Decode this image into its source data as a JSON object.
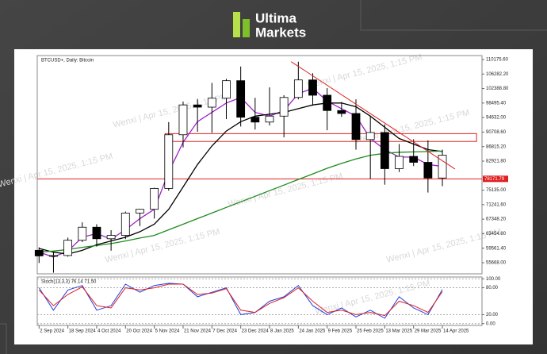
{
  "header": {
    "brand_top": "Ultima",
    "brand_bottom": "Markets"
  },
  "watermark": "Wenxi | Apr 15, 2025, 1:15 PM",
  "chart_data": [
    {
      "type": "candlestick",
      "title": "BTCUSD+, Daily: Bitcoin",
      "x": [
        "2024-09-02",
        "2024-09-10",
        "2024-09-18",
        "2024-09-26",
        "2024-10-04",
        "2024-10-12",
        "2024-10-20",
        "2024-10-28",
        "2024-11-05",
        "2024-11-13",
        "2024-11-21",
        "2024-11-29",
        "2024-12-07",
        "2024-12-15",
        "2024-12-23",
        "2024-12-31",
        "2025-01-08",
        "2025-01-16",
        "2025-01-24",
        "2025-02-01",
        "2025-02-09",
        "2025-02-17",
        "2025-02-25",
        "2025-03-05",
        "2025-03-13",
        "2025-03-21",
        "2025-03-29",
        "2025-04-06",
        "2025-04-14"
      ],
      "open": [
        59000,
        57500,
        57600,
        61700,
        65200,
        62100,
        63000,
        69000,
        70000,
        75600,
        90000,
        98000,
        97400,
        99800,
        104500,
        94700,
        93400,
        95000,
        100000,
        104700,
        100600,
        96500,
        95700,
        88700,
        90600,
        80900,
        84200,
        82600,
        78400
      ],
      "high": [
        59800,
        58500,
        62400,
        66500,
        66000,
        64400,
        69400,
        70100,
        75800,
        93400,
        98900,
        99600,
        103900,
        105000,
        108300,
        99900,
        102700,
        100600,
        109600,
        106500,
        102500,
        98800,
        99500,
        95000,
        92800,
        87500,
        88800,
        88500,
        86000
      ],
      "low": [
        55600,
        53000,
        57300,
        61200,
        60000,
        58900,
        62000,
        65500,
        67500,
        75000,
        86600,
        90800,
        90500,
        94200,
        92200,
        91400,
        92500,
        89300,
        99500,
        97800,
        91200,
        94800,
        86000,
        78200,
        76600,
        80000,
        81600,
        74500,
        76200
      ],
      "close": [
        57500,
        57600,
        61700,
        65200,
        62100,
        63000,
        69000,
        70000,
        75600,
        90000,
        98000,
        97400,
        99800,
        104500,
        94700,
        93400,
        95000,
        100000,
        104700,
        100600,
        96500,
        95700,
        88700,
        90600,
        80900,
        84200,
        82600,
        78400,
        84500
      ],
      "up_color": "#ffffff",
      "down_color": "#000000",
      "overlays": [
        {
          "color": "#a020c8",
          "values": [
            58500,
            57200,
            58800,
            62500,
            63500,
            62000,
            64500,
            67500,
            70000,
            80000,
            88000,
            93500,
            96000,
            98500,
            100000,
            96000,
            95000,
            96500,
            101000,
            102500,
            99000,
            97000,
            95000,
            89000,
            86000,
            84000,
            84000,
            82000,
            81500
          ]
        },
        {
          "color": "#000000",
          "values": [
            59500,
            58500,
            58000,
            59000,
            60500,
            61500,
            62500,
            64000,
            66000,
            70000,
            76000,
            82000,
            87000,
            91000,
            93500,
            95000,
            95500,
            96000,
            97000,
            98000,
            98500,
            98500,
            97500,
            95000,
            92000,
            89000,
            87500,
            86000,
            85500
          ]
        },
        {
          "color": "#1f8a1f",
          "values": [
            58500,
            58800,
            59200,
            59800,
            60300,
            60800,
            61500,
            62300,
            63000,
            64500,
            66000,
            67500,
            69000,
            70500,
            72000,
            73500,
            75000,
            76500,
            78000,
            79500,
            81000,
            82300,
            83500,
            84500,
            85000,
            85300,
            85400,
            85500,
            85600
          ]
        }
      ],
      "support": 78171.79,
      "support_color": "#e02020",
      "zone": {
        "x": [
          "2024-11-11",
          "2025-05-03"
        ],
        "y": [
          88200,
          90300
        ],
        "color": "#e02020"
      },
      "trendline": {
        "x": [
          "2025-01-20",
          "2025-04-21"
        ],
        "y": [
          109600,
          80800
        ],
        "color": "#e02020"
      },
      "xlim": [
        "2024-09-01",
        "2025-05-06"
      ],
      "ylim": [
        52690,
        111240
      ],
      "yticks": [
        {
          "value": 110175.6,
          "label": "110175.60"
        },
        {
          "value": 106282.2,
          "label": "106282.20"
        },
        {
          "value": 102388.8,
          "label": "102388.80"
        },
        {
          "value": 98495.4,
          "label": "98495.40"
        },
        {
          "value": 94632,
          "label": "94632.00"
        },
        {
          "value": 90708.6,
          "label": "90708.60"
        },
        {
          "value": 86815.2,
          "label": "86815.20"
        },
        {
          "value": 82921.8,
          "label": "82921.80"
        },
        {
          "value": 75135,
          "label": "75135.00"
        },
        {
          "value": 71241.6,
          "label": "71241.60"
        },
        {
          "value": 67348.2,
          "label": "67348.20"
        },
        {
          "value": 63454.8,
          "label": "63454.80"
        },
        {
          "value": 59561.4,
          "label": "59561.40"
        },
        {
          "value": 55668,
          "label": "55668.00"
        }
      ]
    },
    {
      "type": "line",
      "title": "Stoch(13,3,3) 76.14 71.50",
      "x": [
        "2024-09-02",
        "2024-09-10",
        "2024-09-18",
        "2024-09-26",
        "2024-10-04",
        "2024-10-12",
        "2024-10-20",
        "2024-10-28",
        "2024-11-05",
        "2024-11-13",
        "2024-11-21",
        "2024-11-29",
        "2024-12-07",
        "2024-12-15",
        "2024-12-23",
        "2024-12-31",
        "2025-01-08",
        "2025-01-16",
        "2025-01-24",
        "2025-02-01",
        "2025-02-09",
        "2025-02-17",
        "2025-02-25",
        "2025-03-05",
        "2025-03-13",
        "2025-03-21",
        "2025-03-29",
        "2025-04-06",
        "2025-04-14"
      ],
      "series": [
        {
          "color": "#2040e0",
          "values": [
            80,
            30,
            75,
            85,
            30,
            40,
            88,
            70,
            85,
            90,
            88,
            60,
            70,
            80,
            20,
            25,
            50,
            60,
            85,
            40,
            20,
            35,
            15,
            30,
            12,
            60,
            35,
            20,
            76.14
          ]
        },
        {
          "color": "#e02020",
          "values": [
            75,
            40,
            65,
            82,
            40,
            35,
            80,
            75,
            80,
            88,
            88,
            65,
            68,
            78,
            30,
            25,
            45,
            58,
            80,
            50,
            25,
            30,
            20,
            25,
            18,
            50,
            40,
            25,
            71.5
          ]
        }
      ],
      "xlim": [
        "2024-09-01",
        "2025-05-06"
      ],
      "ylim": [
        -4,
        104
      ],
      "grid": true,
      "yticks": [
        {
          "value": 100,
          "label": "100.00"
        },
        {
          "value": 80,
          "label": "80.00"
        },
        {
          "value": 20,
          "label": "20.00"
        },
        {
          "value": 0,
          "label": "0.00"
        }
      ],
      "xticks": [
        {
          "value": "2024-09-02",
          "label": "2 Sep 2024"
        },
        {
          "value": "2024-09-18",
          "label": "18 Sep 2024"
        },
        {
          "value": "2024-10-04",
          "label": "4 Oct 2024"
        },
        {
          "value": "2024-10-20",
          "label": "20 Oct 2024"
        },
        {
          "value": "2024-11-05",
          "label": "5 Nov 2024"
        },
        {
          "value": "2024-11-21",
          "label": "21 Nov 2024"
        },
        {
          "value": "2024-12-07",
          "label": "7 Dec 2024"
        },
        {
          "value": "2024-12-23",
          "label": "23 Dec 2024"
        },
        {
          "value": "2025-01-08",
          "label": "8 Jan 2025"
        },
        {
          "value": "2025-01-24",
          "label": "24 Jan 2025"
        },
        {
          "value": "2025-02-09",
          "label": "9 Feb 2025"
        },
        {
          "value": "2025-02-25",
          "label": "25 Feb 2025"
        },
        {
          "value": "2025-03-13",
          "label": "13 Mar 2025"
        },
        {
          "value": "2025-03-29",
          "label": "29 Mar 2025"
        },
        {
          "value": "2025-04-14",
          "label": "14 Apr 2025"
        }
      ]
    }
  ]
}
